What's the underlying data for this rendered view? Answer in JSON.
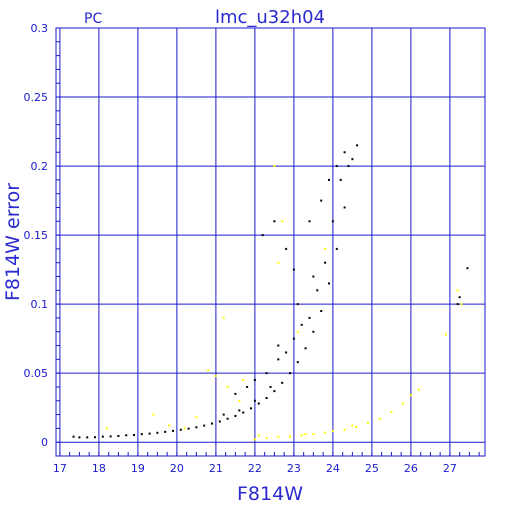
{
  "chart_data": {
    "type": "scatter",
    "title": "lmc_u32h04",
    "subtitle": "PC",
    "xlabel": "F814W",
    "ylabel": "F814W error",
    "xlim": [
      16.9,
      27.9
    ],
    "ylim": [
      -0.01,
      0.3
    ],
    "x_ticks": [
      17,
      18,
      19,
      20,
      21,
      22,
      23,
      24,
      25,
      26,
      27
    ],
    "y_ticks": [
      0,
      0.05,
      0.1,
      0.15,
      0.2,
      0.25,
      0.3
    ],
    "x_tick_labels": [
      "17",
      "18",
      "19",
      "20",
      "21",
      "22",
      "23",
      "24",
      "25",
      "26",
      "27"
    ],
    "y_tick_labels": [
      "0",
      "0.05",
      "0.1",
      "0.15",
      "0.2",
      "0.25",
      "0.3"
    ],
    "grid": true,
    "series": [
      {
        "color": "#000000",
        "points": [
          [
            17.35,
            0.004
          ],
          [
            17.5,
            0.0035
          ],
          [
            17.7,
            0.0035
          ],
          [
            17.9,
            0.0036
          ],
          [
            18.1,
            0.004
          ],
          [
            18.3,
            0.0042
          ],
          [
            18.5,
            0.0045
          ],
          [
            18.7,
            0.005
          ],
          [
            18.9,
            0.0052
          ],
          [
            19.1,
            0.0058
          ],
          [
            19.3,
            0.0062
          ],
          [
            19.5,
            0.0068
          ],
          [
            19.7,
            0.0075
          ],
          [
            19.9,
            0.0082
          ],
          [
            20.1,
            0.009
          ],
          [
            20.3,
            0.0098
          ],
          [
            20.5,
            0.0108
          ],
          [
            20.7,
            0.012
          ],
          [
            20.9,
            0.0135
          ],
          [
            21.1,
            0.015
          ],
          [
            21.3,
            0.017
          ],
          [
            21.5,
            0.019
          ],
          [
            21.7,
            0.0215
          ],
          [
            21.9,
            0.0245
          ],
          [
            22.1,
            0.028
          ],
          [
            22.3,
            0.032
          ],
          [
            22.5,
            0.037
          ],
          [
            22.7,
            0.043
          ],
          [
            22.9,
            0.05
          ],
          [
            23.1,
            0.058
          ],
          [
            23.3,
            0.068
          ],
          [
            23.5,
            0.08
          ],
          [
            23.7,
            0.095
          ],
          [
            23.9,
            0.115
          ],
          [
            24.1,
            0.14
          ],
          [
            24.3,
            0.17
          ],
          [
            24.5,
            0.205
          ],
          [
            24.62,
            0.215
          ],
          [
            21.2,
            0.02
          ],
          [
            21.6,
            0.023
          ],
          [
            22.0,
            0.03
          ],
          [
            22.4,
            0.04
          ],
          [
            22.6,
            0.06
          ],
          [
            22.8,
            0.065
          ],
          [
            23.0,
            0.075
          ],
          [
            23.2,
            0.085
          ],
          [
            23.4,
            0.09
          ],
          [
            23.6,
            0.11
          ],
          [
            23.8,
            0.13
          ],
          [
            24.0,
            0.16
          ],
          [
            24.2,
            0.19
          ],
          [
            24.4,
            0.2
          ],
          [
            22.5,
            0.16
          ],
          [
            22.8,
            0.14
          ],
          [
            23.0,
            0.125
          ],
          [
            23.4,
            0.16
          ],
          [
            23.7,
            0.175
          ],
          [
            23.9,
            0.19
          ],
          [
            24.1,
            0.2
          ],
          [
            24.3,
            0.21
          ],
          [
            22.2,
            0.15
          ],
          [
            21.5,
            0.035
          ],
          [
            21.8,
            0.04
          ],
          [
            22.0,
            0.045
          ],
          [
            22.3,
            0.05
          ],
          [
            22.6,
            0.07
          ],
          [
            23.1,
            0.1
          ],
          [
            23.5,
            0.12
          ],
          [
            27.2,
            0.1
          ],
          [
            27.25,
            0.105
          ],
          [
            27.45,
            0.126
          ]
        ]
      },
      {
        "color": "#ffff00",
        "points": [
          [
            18.2,
            0.01
          ],
          [
            19.4,
            0.02
          ],
          [
            20.2,
            0.01
          ],
          [
            20.8,
            0.052
          ],
          [
            21.0,
            0.048
          ],
          [
            21.3,
            0.04
          ],
          [
            21.2,
            0.09
          ],
          [
            21.6,
            0.03
          ],
          [
            22.0,
            0.002
          ],
          [
            22.3,
            0.003
          ],
          [
            22.6,
            0.004
          ],
          [
            22.9,
            0.004
          ],
          [
            23.2,
            0.005
          ],
          [
            23.5,
            0.006
          ],
          [
            23.8,
            0.007
          ],
          [
            24.0,
            0.008
          ],
          [
            24.3,
            0.009
          ],
          [
            24.6,
            0.011
          ],
          [
            24.9,
            0.014
          ],
          [
            25.2,
            0.017
          ],
          [
            25.5,
            0.022
          ],
          [
            25.8,
            0.028
          ],
          [
            26.0,
            0.034
          ],
          [
            26.2,
            0.038
          ],
          [
            22.5,
            0.2
          ],
          [
            22.7,
            0.16
          ],
          [
            23.1,
            0.08
          ],
          [
            23.8,
            0.14
          ],
          [
            22.6,
            0.13
          ],
          [
            26.9,
            0.078
          ],
          [
            27.2,
            0.11
          ],
          [
            27.3,
            0.1
          ],
          [
            21.7,
            0.045
          ],
          [
            22.1,
            0.005
          ],
          [
            23.3,
            0.006
          ],
          [
            24.5,
            0.012
          ],
          [
            20.5,
            0.018
          ],
          [
            19.8,
            0.012
          ]
        ]
      }
    ]
  }
}
